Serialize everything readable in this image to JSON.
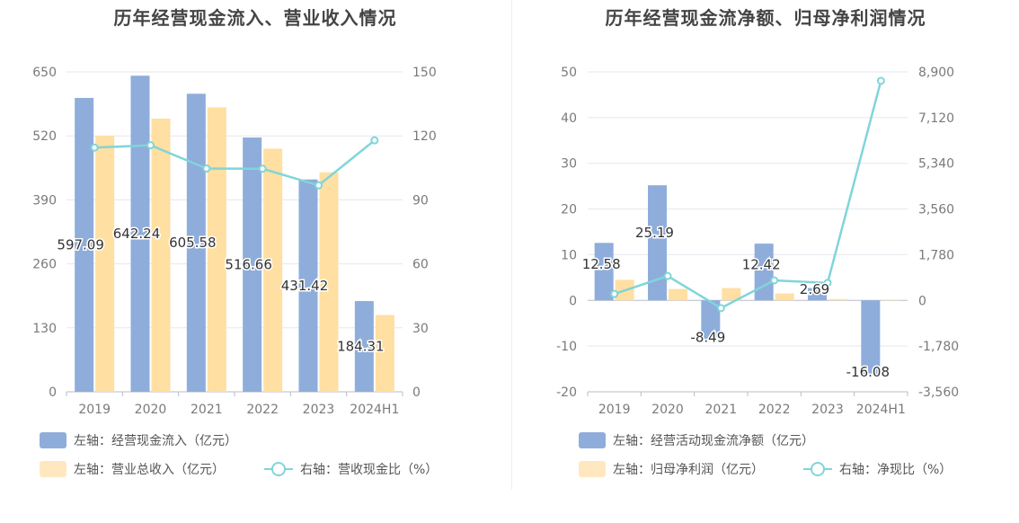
{
  "chart_data": [
    {
      "type": "bar",
      "title": "历年经营现金流入、营业收入情况",
      "categories": [
        "2019",
        "2020",
        "2021",
        "2022",
        "2023",
        "2024H1"
      ],
      "left_axis": {
        "ticks": [
          "0",
          "130",
          "260",
          "390",
          "520",
          "650"
        ],
        "ylim": [
          0,
          650
        ]
      },
      "right_axis": {
        "ticks": [
          "0",
          "30",
          "60",
          "90",
          "120",
          "150"
        ],
        "ylim": [
          0,
          150
        ]
      },
      "grid": true,
      "legend_position": "bottom-left",
      "series": [
        {
          "name": "左轴：经营现金流入（亿元）",
          "type": "bar",
          "axis": "left",
          "color": "#8eaddb",
          "values": [
            597.09,
            642.24,
            605.58,
            516.66,
            431.42,
            184.31
          ],
          "labels": [
            "597.09",
            "642.24",
            "605.58",
            "516.66",
            "431.42",
            "184.31"
          ]
        },
        {
          "name": "左轴：营业总收入（亿元）",
          "type": "bar",
          "axis": "left",
          "color": "#ffdfa2",
          "values": [
            520,
            555,
            578,
            494,
            446,
            156
          ]
        },
        {
          "name": "右轴：营收现金比（%）",
          "type": "line",
          "axis": "right",
          "color": "#80d5d9",
          "values": [
            114.5,
            115.6,
            104.7,
            104.6,
            96.8,
            117.9
          ]
        }
      ]
    },
    {
      "type": "bar",
      "title": "历年经营现金流净额、归母净利润情况",
      "categories": [
        "2019",
        "2020",
        "2021",
        "2022",
        "2023",
        "2024H1"
      ],
      "left_axis": {
        "ticks": [
          "-20",
          "-10",
          "0",
          "10",
          "20",
          "30",
          "40",
          "50"
        ],
        "ylim": [
          -20,
          50
        ]
      },
      "right_axis": {
        "ticks": [
          "-3,560",
          "-1,780",
          "0",
          "1,780",
          "3,560",
          "5,340",
          "7,120",
          "8,900"
        ],
        "ylim": [
          -3560,
          8900
        ]
      },
      "grid": true,
      "legend_position": "bottom-left",
      "series": [
        {
          "name": "左轴：经营活动现金流净额（亿元）",
          "type": "bar",
          "axis": "left",
          "color": "#8eaddb",
          "values": [
            12.58,
            25.19,
            -8.49,
            12.42,
            2.69,
            -16.08
          ],
          "labels": [
            "12.58",
            "25.19",
            "-8.49",
            "12.42",
            "2.69",
            "-16.08"
          ]
        },
        {
          "name": "左轴：归母净利润（亿元）",
          "type": "bar",
          "axis": "left",
          "color": "#ffdfa2",
          "values": [
            4.5,
            2.5,
            2.7,
            1.5,
            0.3,
            0.1
          ]
        },
        {
          "name": "右轴：净现比（%）",
          "type": "line",
          "axis": "right",
          "color": "#80d5d9",
          "values": [
            250,
            950,
            -300,
            780,
            680,
            8550
          ]
        }
      ]
    }
  ]
}
